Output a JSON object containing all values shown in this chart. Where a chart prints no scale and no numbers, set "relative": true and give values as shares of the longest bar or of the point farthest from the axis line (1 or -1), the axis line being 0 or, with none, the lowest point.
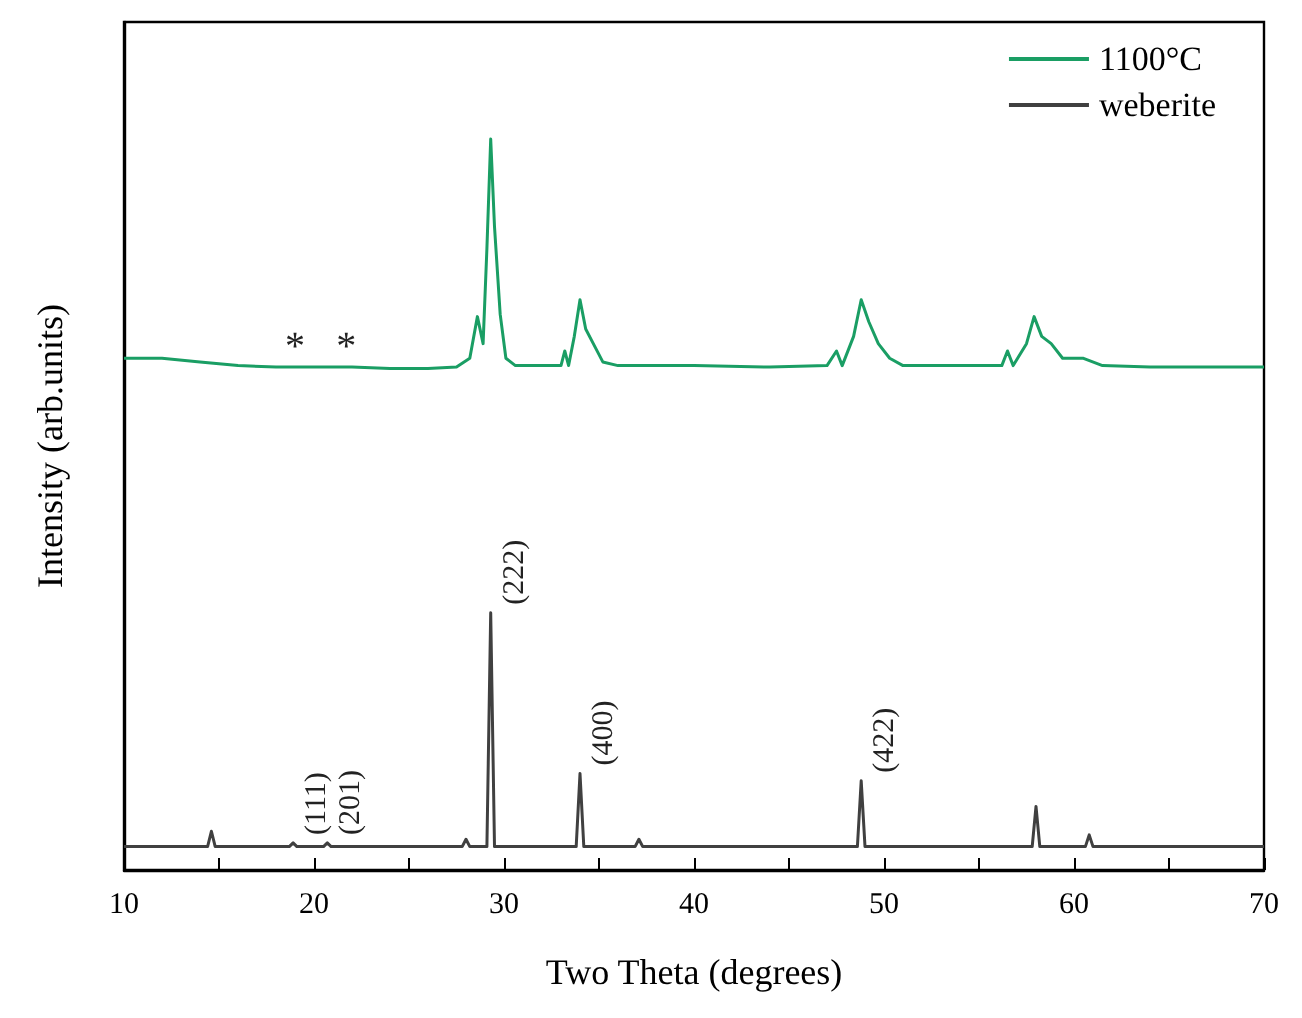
{
  "chart_data": {
    "type": "line",
    "xlabel": "Two Theta (degrees)",
    "ylabel": "Intensity (arb.units)",
    "relative": true,
    "xlim": [
      10,
      70
    ],
    "xticks": [
      10,
      20,
      30,
      40,
      50,
      60,
      70
    ],
    "legend": "top right",
    "grid": false,
    "series": [
      {
        "name": "1100°C",
        "color": "#1a9e64",
        "x": [
          10,
          12,
          14,
          16,
          18,
          19.0,
          20,
          21.7,
          22,
          24,
          26,
          27.5,
          28.2,
          28.6,
          28.9,
          29.1,
          29.3,
          29.5,
          29.8,
          30.1,
          30.6,
          32,
          33,
          33.2,
          33.4,
          33.7,
          34.0,
          34.3,
          34.7,
          35.2,
          36,
          40,
          44,
          47,
          47.5,
          47.8,
          48.4,
          48.8,
          49.2,
          49.7,
          50.3,
          51,
          54,
          56.2,
          56.5,
          56.8,
          57.5,
          57.9,
          58.3,
          58.8,
          59.4,
          60.5,
          61.5,
          64,
          67,
          70
        ],
        "values": [
          0.7,
          0.7,
          0.695,
          0.69,
          0.688,
          0.688,
          0.688,
          0.688,
          0.688,
          0.686,
          0.686,
          0.688,
          0.7,
          0.757,
          0.72,
          0.85,
          1.0,
          0.88,
          0.76,
          0.7,
          0.69,
          0.69,
          0.69,
          0.71,
          0.69,
          0.73,
          0.78,
          0.74,
          0.72,
          0.695,
          0.69,
          0.69,
          0.688,
          0.69,
          0.71,
          0.69,
          0.73,
          0.78,
          0.75,
          0.72,
          0.7,
          0.69,
          0.69,
          0.69,
          0.71,
          0.69,
          0.72,
          0.757,
          0.73,
          0.72,
          0.7,
          0.7,
          0.69,
          0.688,
          0.688,
          0.688
        ]
      },
      {
        "name": "weberite",
        "color": "#404040",
        "x": [
          10,
          14.4,
          14.6,
          14.8,
          18.7,
          18.9,
          19.1,
          20.5,
          20.7,
          20.9,
          27.8,
          28.0,
          28.2,
          29.1,
          29.3,
          29.5,
          33.8,
          34.0,
          34.2,
          36.9,
          37.1,
          37.3,
          48.6,
          48.8,
          49.0,
          57.8,
          58.0,
          58.2,
          60.6,
          60.8,
          61.0,
          70
        ],
        "values": [
          0.032,
          0.032,
          0.053,
          0.032,
          0.032,
          0.037,
          0.032,
          0.032,
          0.037,
          0.032,
          0.032,
          0.042,
          0.032,
          0.032,
          0.352,
          0.032,
          0.032,
          0.132,
          0.032,
          0.032,
          0.042,
          0.032,
          0.032,
          0.122,
          0.032,
          0.032,
          0.087,
          0.032,
          0.032,
          0.048,
          0.032,
          0.032
        ]
      }
    ],
    "annotations": [
      {
        "text": "*",
        "x": 19.0,
        "y": 0.688
      },
      {
        "text": "*",
        "x": 21.7,
        "y": 0.688
      },
      {
        "text": "(111)",
        "x": 18.9,
        "y": 0.037
      },
      {
        "text": "(201)",
        "x": 20.7,
        "y": 0.037
      },
      {
        "text": "(222)",
        "x": 29.3,
        "y": 0.352
      },
      {
        "text": "(400)",
        "x": 34.0,
        "y": 0.132
      },
      {
        "text": "(422)",
        "x": 48.8,
        "y": 0.122
      }
    ]
  }
}
